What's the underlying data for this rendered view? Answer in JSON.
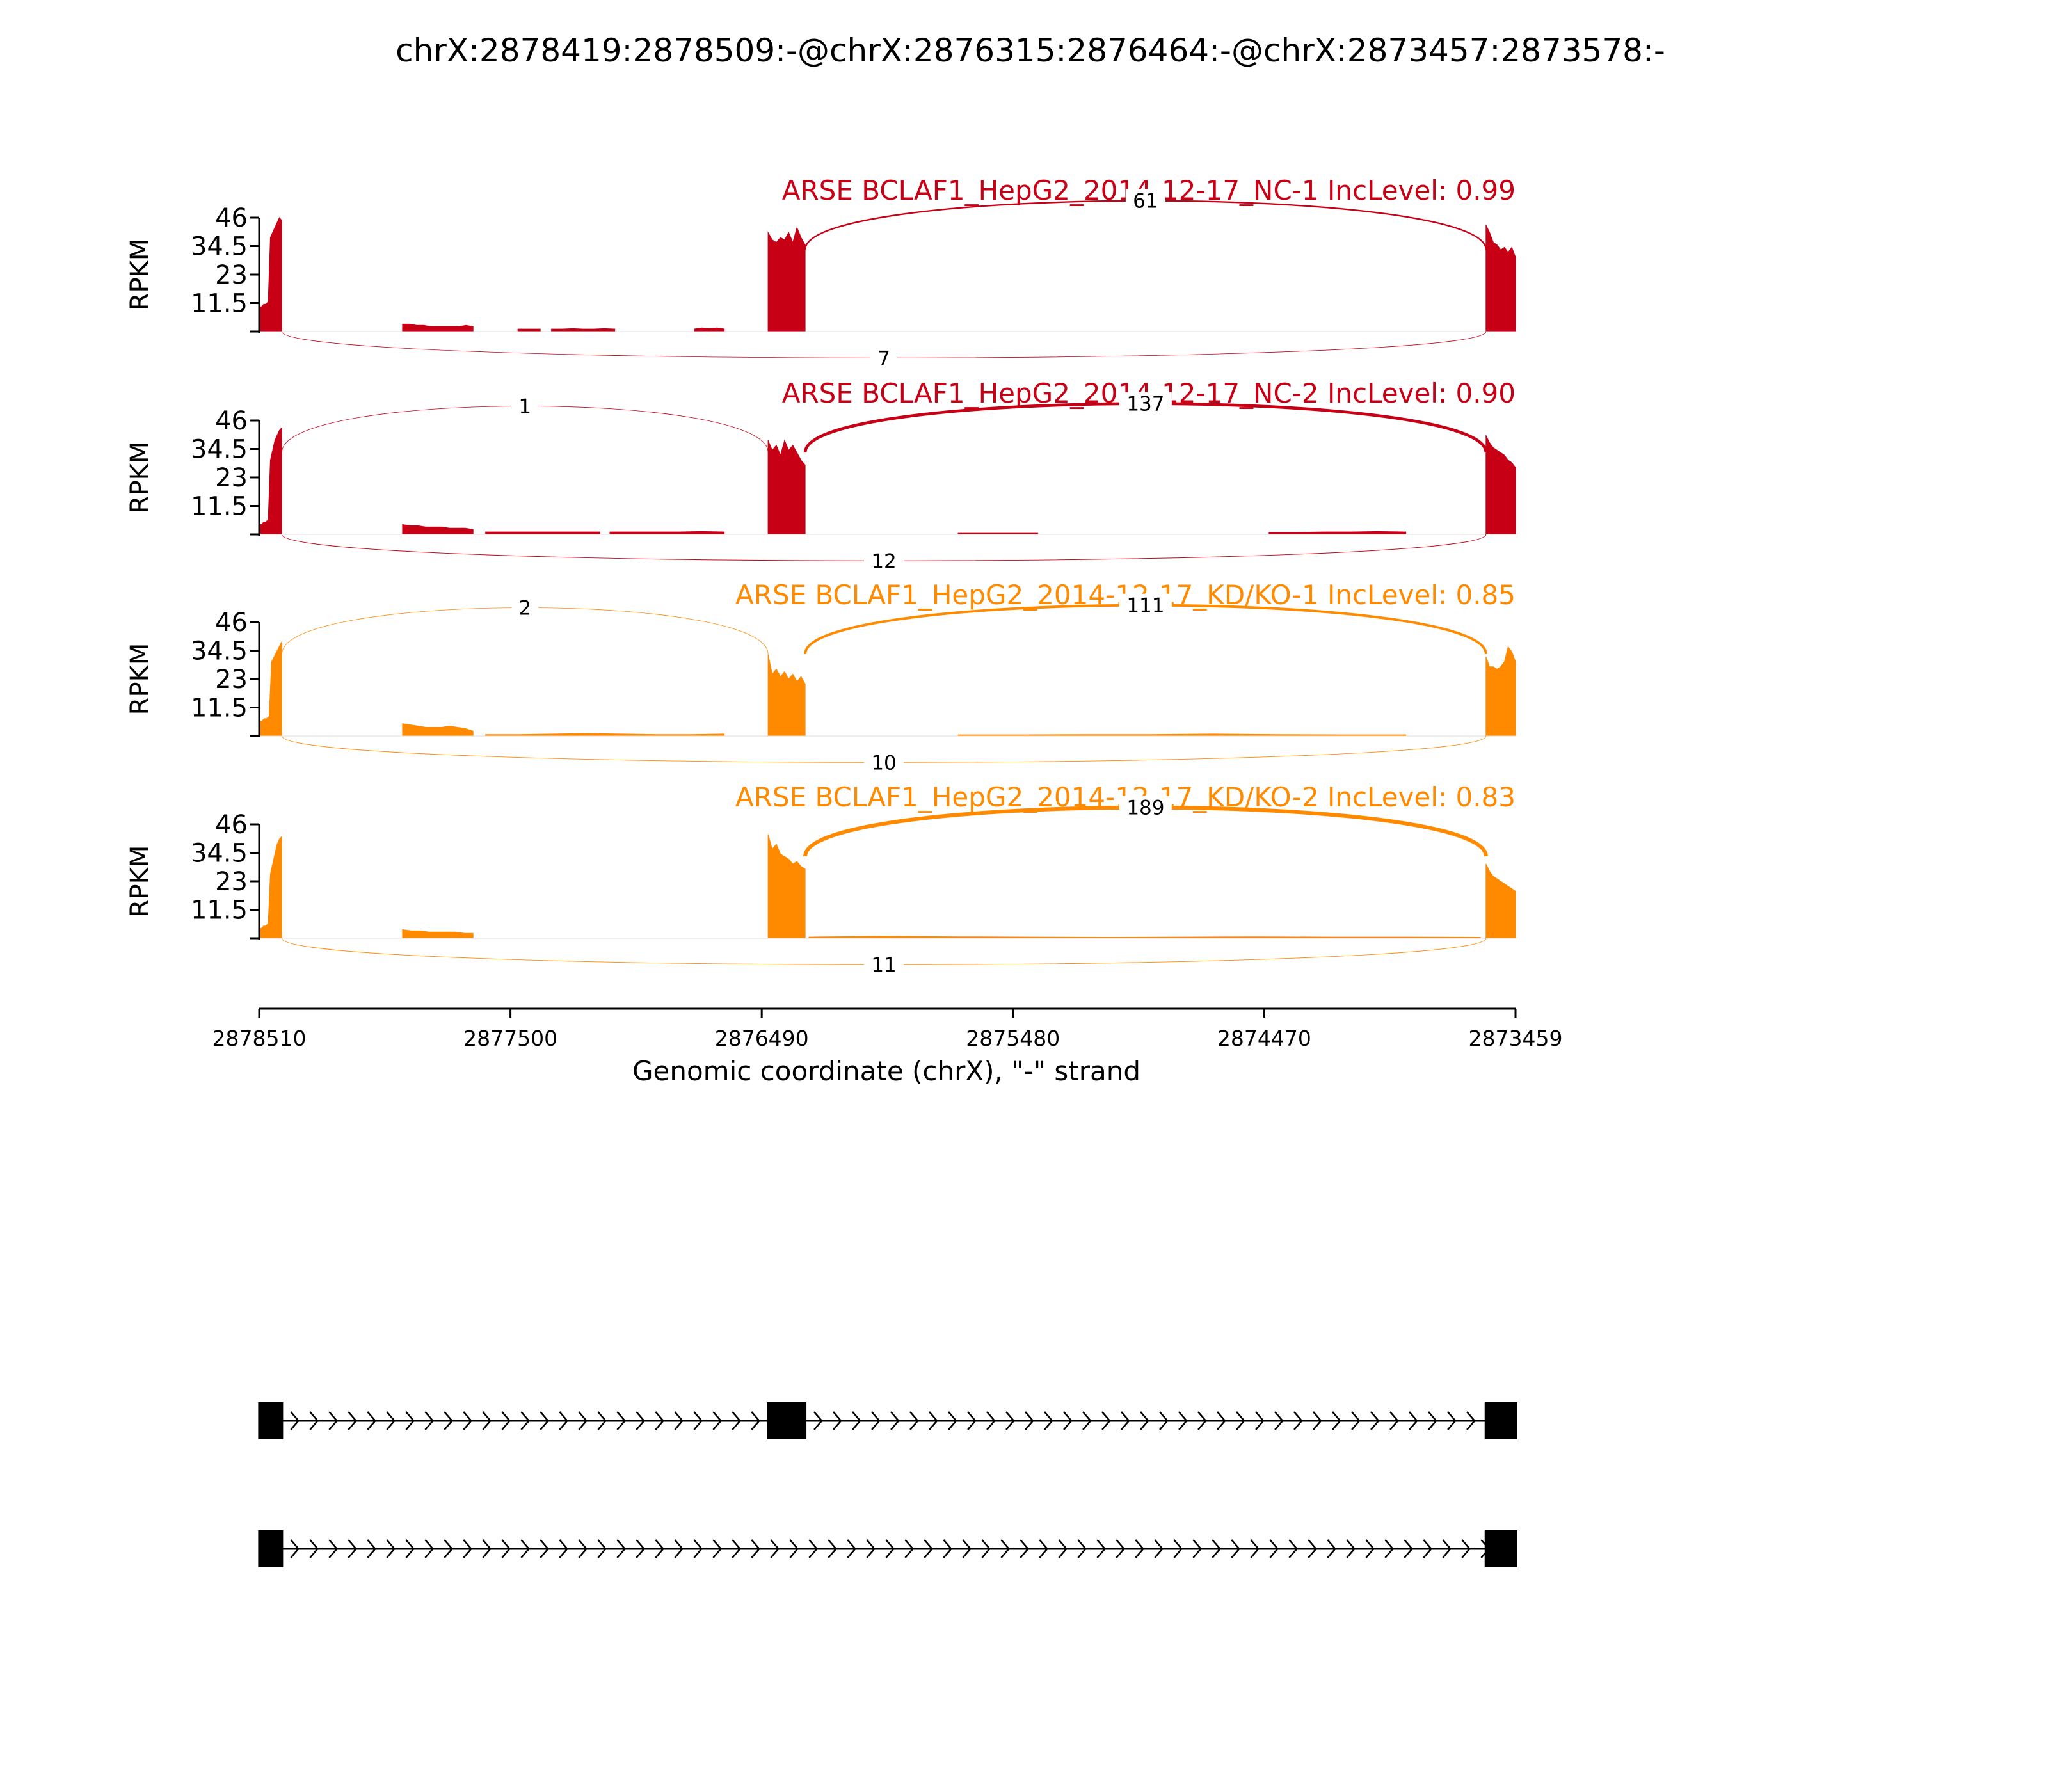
{
  "title": "chrX:2878419:2878509:-@chrX:2876315:2876464:-@chrX:2873457:2873578:-",
  "colors": {
    "NC": "#c80016",
    "KD": "#ff8a00",
    "structure": "#000000"
  },
  "chart_data": {
    "type": "area",
    "title": "chrX:2878419:2878509:-@chrX:2876315:2876464:-@chrX:2873457:2873578:-",
    "xlabel": "Genomic coordinate (chrX), \"-\" strand",
    "ylabel": "RPKM",
    "x_range": [
      2878510,
      2873459
    ],
    "x_ticks": [
      "2878510",
      "2877500",
      "2876490",
      "2875480",
      "2874470",
      "2873459"
    ],
    "y_range": [
      0,
      46
    ],
    "y_ticks": [
      "11.5",
      "23",
      "34.5",
      "46"
    ],
    "exons": [
      {
        "start": 2878509,
        "end": 2878419
      },
      {
        "start": 2876464,
        "end": 2876315
      },
      {
        "start": 2873578,
        "end": 2873457
      }
    ],
    "introns": [
      {
        "start": 2878419,
        "end": 2876464
      },
      {
        "start": 2876315,
        "end": 2873578
      }
    ],
    "tracks": [
      {
        "name": "ARSE BCLAF1_HepG2_2014-12-17_NC-1 IncLevel: 0.99",
        "color_key": "NC",
        "coverage": [
          {
            "start": 2878510,
            "end": 2878420,
            "values": [
              10,
              10,
              11,
              11,
              12,
              38,
              40,
              42,
              44,
              46,
              45
            ]
          },
          {
            "start": 2877934,
            "end": 2877650,
            "values": [
              3,
              3,
              2.5,
              2.5,
              2,
              2,
              2,
              2,
              2,
              2.5,
              2
            ]
          },
          {
            "start": 2877470,
            "end": 2877380,
            "values": [
              1,
              1
            ]
          },
          {
            "start": 2877335,
            "end": 2877080,
            "values": [
              1,
              1,
              1.2,
              1,
              1,
              1.2,
              1
            ]
          },
          {
            "start": 2876760,
            "end": 2876640,
            "values": [
              1,
              1.5,
              1.2,
              1.5,
              1
            ]
          },
          {
            "start": 2876464,
            "end": 2876315,
            "values": [
              40,
              37,
              36,
              38,
              37,
              40,
              36,
              42,
              38,
              35
            ]
          },
          {
            "start": 2873578,
            "end": 2873459,
            "values": [
              43,
              40,
              36,
              35,
              33,
              34,
              32,
              34,
              30
            ]
          }
        ],
        "junctions": [
          {
            "from": 2876315,
            "to": 2873578,
            "count": "61",
            "side": "above"
          },
          {
            "from": 2878419,
            "to": 2873578,
            "count": "7",
            "side": "below"
          }
        ]
      },
      {
        "name": "ARSE BCLAF1_HepG2_2014-12-17_NC-2 IncLevel: 0.90",
        "color_key": "NC",
        "coverage": [
          {
            "start": 2878510,
            "end": 2878420,
            "values": [
              4,
              4,
              5,
              5,
              6,
              30,
              34,
              38,
              40,
              42,
              43
            ]
          },
          {
            "start": 2877934,
            "end": 2877650,
            "values": [
              4,
              3.5,
              3.5,
              3,
              3,
              3,
              2.5,
              2.5,
              2.5,
              2
            ]
          },
          {
            "start": 2877600,
            "end": 2877140,
            "values": [
              1,
              1,
              1,
              1,
              1,
              1,
              1
            ]
          },
          {
            "start": 2877100,
            "end": 2876640,
            "values": [
              1,
              1,
              1,
              1,
              1.2,
              1
            ]
          },
          {
            "start": 2876464,
            "end": 2876315,
            "values": [
              38,
              34,
              36,
              32,
              38,
              34,
              36,
              33,
              30,
              28
            ]
          },
          {
            "start": 2875700,
            "end": 2875380,
            "values": [
              0.5,
              0.5,
              0.5
            ]
          },
          {
            "start": 2874450,
            "end": 2873900,
            "values": [
              0.8,
              0.8,
              1,
              1,
              1.2,
              1
            ]
          },
          {
            "start": 2873578,
            "end": 2873459,
            "values": [
              40,
              37,
              35,
              34,
              33,
              32,
              30,
              29,
              27
            ]
          }
        ],
        "junctions": [
          {
            "from": 2878419,
            "to": 2876464,
            "count": "1",
            "side": "above"
          },
          {
            "from": 2876315,
            "to": 2873578,
            "count": "137",
            "side": "above"
          },
          {
            "from": 2878419,
            "to": 2873578,
            "count": "12",
            "side": "below"
          }
        ]
      },
      {
        "name": "ARSE BCLAF1_HepG2_2014-12-17_KD/KO-1 IncLevel: 0.85",
        "color_key": "KD",
        "coverage": [
          {
            "start": 2878510,
            "end": 2878420,
            "values": [
              6,
              6,
              7,
              7,
              8,
              30,
              32,
              34,
              36,
              38
            ]
          },
          {
            "start": 2877934,
            "end": 2877650,
            "values": [
              5,
              4.5,
              4,
              3.5,
              3.5,
              3.5,
              4,
              3.5,
              3,
              2
            ]
          },
          {
            "start": 2877600,
            "end": 2876640,
            "values": [
              0.6,
              0.6,
              0.8,
              1,
              0.8,
              0.6,
              0.6,
              0.8
            ]
          },
          {
            "start": 2876464,
            "end": 2876315,
            "values": [
              33,
              25,
              27,
              24,
              26,
              23,
              25,
              22,
              24,
              21
            ]
          },
          {
            "start": 2875700,
            "end": 2873900,
            "values": [
              0.5,
              0.5,
              0.6,
              0.6,
              0.8,
              0.6,
              0.5,
              0.5
            ]
          },
          {
            "start": 2873578,
            "end": 2873459,
            "values": [
              32,
              28,
              28,
              27,
              28,
              30,
              36,
              34,
              30
            ]
          }
        ],
        "junctions": [
          {
            "from": 2878419,
            "to": 2876464,
            "count": "2",
            "side": "above"
          },
          {
            "from": 2876315,
            "to": 2873578,
            "count": "111",
            "side": "above"
          },
          {
            "from": 2878419,
            "to": 2873578,
            "count": "10",
            "side": "below"
          }
        ]
      },
      {
        "name": "ARSE BCLAF1_HepG2_2014-12-17_KD/KO-2 IncLevel: 0.83",
        "color_key": "KD",
        "coverage": [
          {
            "start": 2878510,
            "end": 2878420,
            "values": [
              4,
              4,
              5,
              5,
              6,
              26,
              30,
              34,
              38,
              40,
              41
            ]
          },
          {
            "start": 2877934,
            "end": 2877650,
            "values": [
              3.5,
              3,
              3,
              2.5,
              2.5,
              2.5,
              2.5,
              2,
              2
            ]
          },
          {
            "start": 2876464,
            "end": 2876315,
            "values": [
              42,
              36,
              38,
              34,
              33,
              32,
              30,
              31,
              29,
              28
            ]
          },
          {
            "start": 2876300,
            "end": 2873600,
            "values": [
              0.5,
              0.8,
              0.6,
              0.5,
              0.4,
              0.5,
              0.6,
              0.5,
              0.5,
              0.4
            ]
          },
          {
            "start": 2873578,
            "end": 2873459,
            "values": [
              30,
              27,
              25,
              24,
              23,
              22,
              21,
              20,
              19
            ]
          }
        ],
        "junctions": [
          {
            "from": 2876315,
            "to": 2873578,
            "count": "189",
            "side": "above"
          },
          {
            "from": 2878419,
            "to": 2873578,
            "count": "11",
            "side": "below"
          }
        ]
      }
    ],
    "isoforms": [
      {
        "exons": [
          0,
          1,
          2
        ]
      },
      {
        "exons": [
          0,
          2
        ]
      }
    ]
  }
}
